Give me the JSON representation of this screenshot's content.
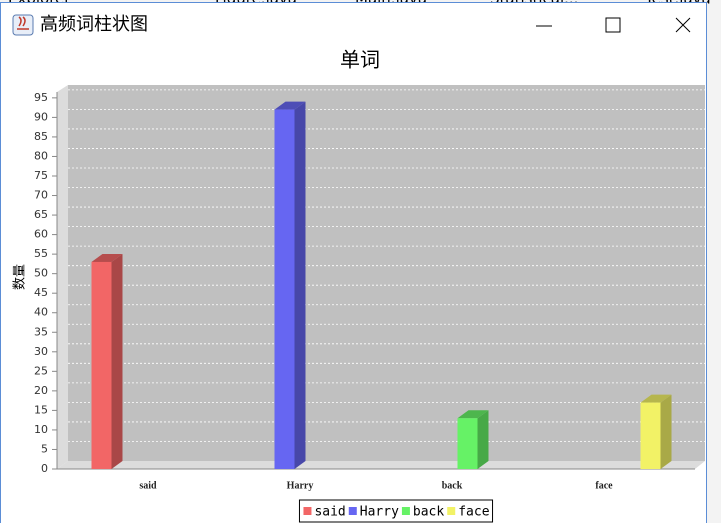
{
  "background_tabs": [
    "Explorer",
    "Figure.java",
    "Main.java",
    "Statistical...",
    "Test.java"
  ],
  "window": {
    "title": "高频词柱状图"
  },
  "chart_data": {
    "type": "bar",
    "title": "单词",
    "y_label": "数量",
    "categories": [
      "said",
      "Harry",
      "back",
      "face"
    ],
    "series": [
      {
        "name": "said",
        "color": "#f26666",
        "values": [
          53,
          null,
          null,
          null
        ]
      },
      {
        "name": "Harry",
        "color": "#6666f2",
        "values": [
          null,
          92,
          null,
          null
        ]
      },
      {
        "name": "back",
        "color": "#66f266",
        "values": [
          null,
          null,
          13,
          null
        ]
      },
      {
        "name": "face",
        "color": "#f2f266",
        "values": [
          null,
          null,
          null,
          17
        ]
      }
    ],
    "ylim": [
      0,
      96.5
    ],
    "yticks": [
      0,
      5,
      10,
      15,
      20,
      25,
      30,
      35,
      40,
      45,
      50,
      55,
      60,
      65,
      70,
      75,
      80,
      85,
      90,
      95
    ],
    "grid": true,
    "legend": "bottom"
  }
}
